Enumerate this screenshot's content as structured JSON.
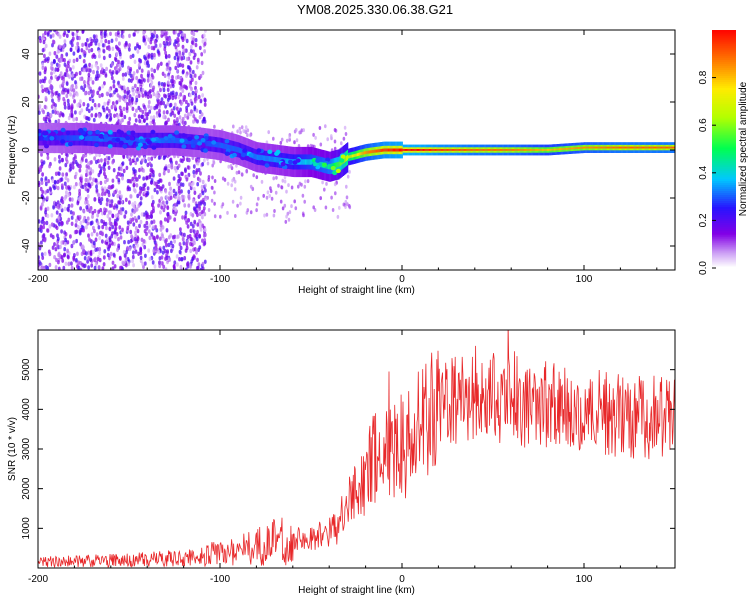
{
  "title": "YM08.2025.330.06.38.G21",
  "chart_data": [
    {
      "type": "heatmap",
      "title": "YM08.2025.330.06.38.G21",
      "xlabel": "Height of straight line (km)",
      "ylabel": "Frequency (Hz)",
      "xlim": [
        -200,
        150
      ],
      "ylim": [
        -50,
        50
      ],
      "xticks": [
        -200,
        -100,
        0,
        100
      ],
      "yticks": [
        -40,
        -20,
        0,
        20,
        40
      ],
      "colorbar": {
        "label": "Normalized spectral amplitude",
        "range": [
          0,
          1
        ],
        "ticks": [
          0.0,
          0.2,
          0.4,
          0.6,
          0.8
        ],
        "tick_labels": [
          "0.0",
          "0.2",
          "0.4",
          "0.6",
          "0.8"
        ],
        "colormap": "rainbow (white-violet-blue-cyan-green-yellow-red)"
      },
      "ridge": {
        "description": "dominant frequency track vs height",
        "x": [
          -200,
          -175,
          -150,
          -125,
          -110,
          -100,
          -90,
          -80,
          -70,
          -60,
          -50,
          -40,
          -35,
          -30,
          -25,
          -20,
          -10,
          0,
          10,
          20,
          40,
          60,
          80,
          100,
          120,
          150
        ],
        "frequency": [
          5,
          5,
          4,
          4,
          3,
          2,
          0,
          -3,
          -4,
          -5,
          -5,
          -7,
          -6,
          -3,
          -2,
          -1,
          0,
          0,
          0,
          0,
          0,
          0,
          0,
          1,
          1,
          1
        ],
        "amplitude": [
          0.25,
          0.3,
          0.3,
          0.3,
          0.28,
          0.3,
          0.3,
          0.32,
          0.33,
          0.35,
          0.4,
          0.45,
          0.55,
          0.65,
          0.75,
          0.85,
          0.95,
          1.0,
          1.0,
          0.95,
          0.9,
          0.88,
          0.8,
          0.85,
          0.9,
          0.9
        ]
      }
    },
    {
      "type": "line",
      "xlabel": "Height of straight line (km)",
      "ylabel": "SNR (10 * v/v)",
      "xlim": [
        -200,
        150
      ],
      "ylim": [
        0,
        6000
      ],
      "xticks": [
        -200,
        -100,
        0,
        100
      ],
      "yticks": [
        1000,
        2000,
        3000,
        4000,
        5000
      ],
      "color": "#e8282a",
      "series": [
        {
          "name": "SNR",
          "x": [
            -200,
            -180,
            -160,
            -140,
            -120,
            -110,
            -100,
            -90,
            -80,
            -70,
            -60,
            -50,
            -40,
            -35,
            -30,
            -25,
            -20,
            -15,
            -10,
            -5,
            0,
            5,
            10,
            15,
            20,
            25,
            30,
            40,
            50,
            60,
            70,
            80,
            90,
            100,
            110,
            120,
            130,
            140,
            150
          ],
          "values": [
            150,
            170,
            190,
            210,
            250,
            300,
            380,
            450,
            550,
            650,
            700,
            750,
            900,
            1100,
            1500,
            2000,
            2400,
            2700,
            2900,
            3000,
            3100,
            3300,
            3500,
            3800,
            4000,
            4100,
            4200,
            4300,
            4300,
            4250,
            4200,
            4100,
            4000,
            3950,
            3900,
            3850,
            3800,
            3800,
            3750
          ]
        }
      ]
    }
  ]
}
